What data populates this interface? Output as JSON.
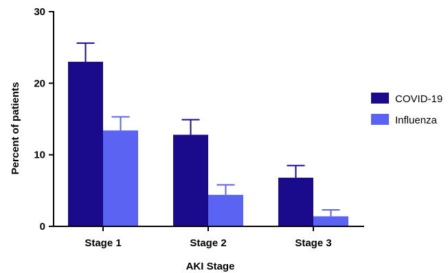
{
  "chart_data": {
    "type": "bar",
    "title": "",
    "xlabel": "AKI Stage",
    "ylabel": "Percent of patients",
    "ylim": [
      0,
      30
    ],
    "yticks": [
      0,
      10,
      20,
      30
    ],
    "categories": [
      "Stage 1",
      "Stage 2",
      "Stage 3"
    ],
    "series": [
      {
        "name": "COVID-19",
        "color": "#1a0a8c",
        "values": [
          23.0,
          12.8,
          6.8
        ],
        "error_upper": [
          25.6,
          14.9,
          8.5
        ]
      },
      {
        "name": "Influenza",
        "color": "#5a63f2",
        "values": [
          13.4,
          4.4,
          1.4
        ],
        "error_upper": [
          15.3,
          5.8,
          2.3
        ]
      }
    ],
    "grid": false,
    "legend_position": "right"
  }
}
